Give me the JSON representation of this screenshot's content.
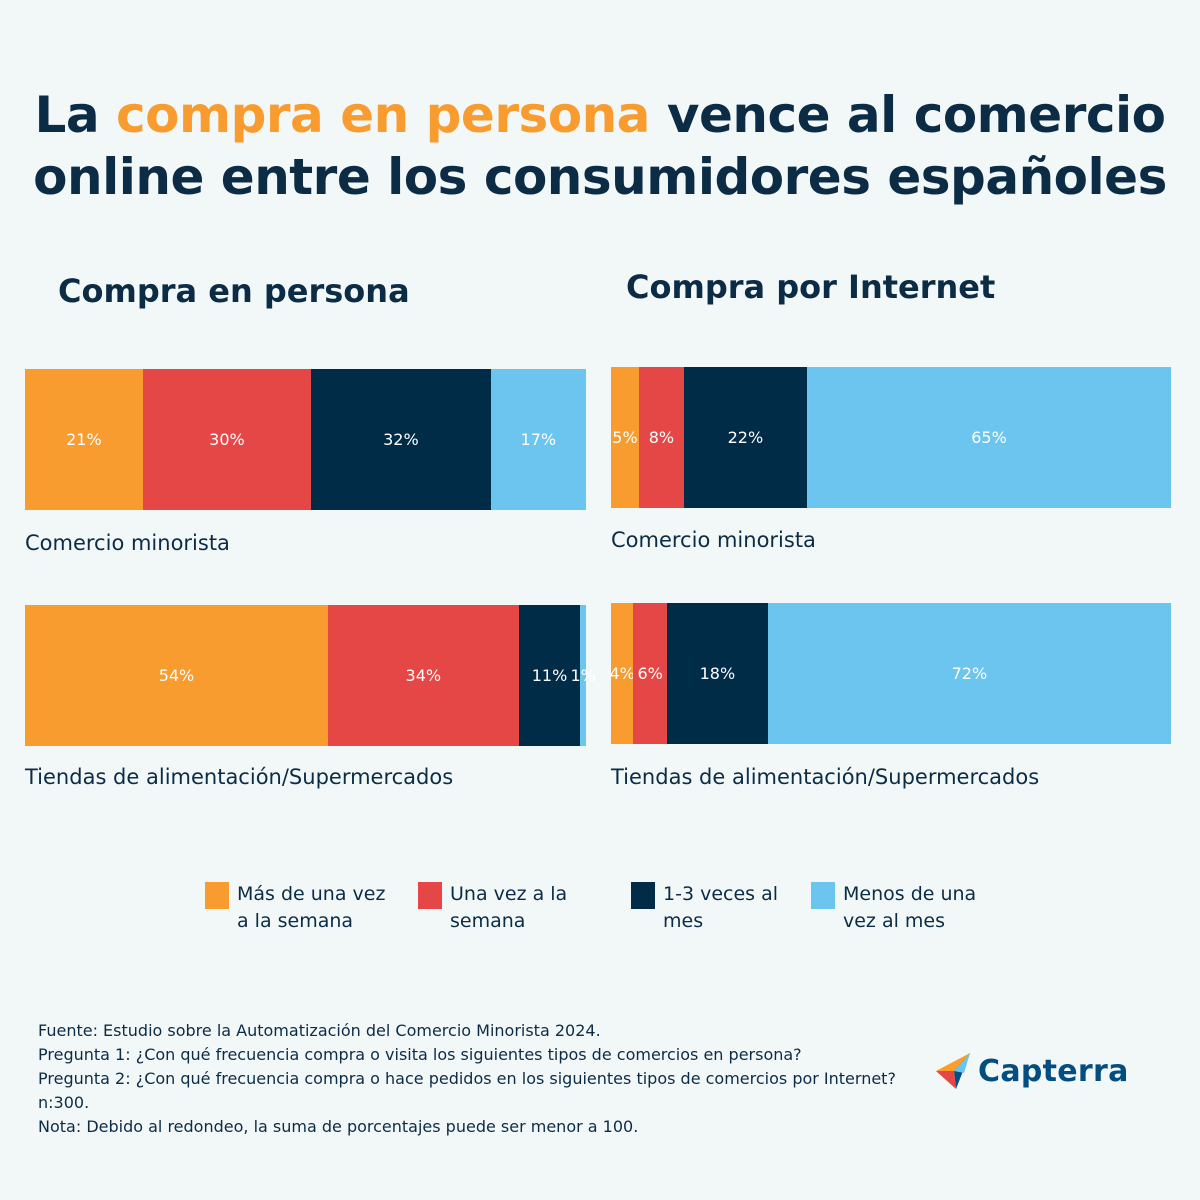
{
  "title": {
    "part1": "La ",
    "highlight": "compra en persona",
    "part2": " vence al comercio",
    "line2": "online entre los consumidores españoles"
  },
  "sections": [
    {
      "title": "Compra en persona"
    },
    {
      "title": "Compra por Internet"
    }
  ],
  "legend": [
    {
      "label": "Más de una vez a la semana",
      "color": "#f89c30"
    },
    {
      "label": "Una vez a la semana",
      "color": "#e54747"
    },
    {
      "label": "1-3 veces al mes",
      "color": "#002c47"
    },
    {
      "label": "Menos de una vez al mes",
      "color": "#6bc5ee"
    }
  ],
  "chart_data": [
    {
      "type": "bar",
      "stacked": true,
      "orientation": "horizontal",
      "title": "Compra en persona",
      "categories": [
        "Comercio minorista",
        "Tiendas de alimentación/Supermercados"
      ],
      "series": [
        {
          "name": "Más de una vez a la semana",
          "color": "#f89c30",
          "values": [
            21,
            54
          ],
          "labels": [
            "21%",
            "54%"
          ]
        },
        {
          "name": "Una vez a la semana",
          "color": "#e54747",
          "values": [
            30,
            34
          ],
          "labels": [
            "30%",
            "34%"
          ]
        },
        {
          "name": "1-3 veces al mes",
          "color": "#002c47",
          "values": [
            32,
            11
          ],
          "labels": [
            "32%",
            "11%"
          ]
        },
        {
          "name": "Menos de una vez al mes",
          "color": "#6bc5ee",
          "values": [
            17,
            1
          ],
          "labels": [
            "17%",
            "1%"
          ]
        }
      ]
    },
    {
      "type": "bar",
      "stacked": true,
      "orientation": "horizontal",
      "title": "Compra por Internet",
      "categories": [
        "Comercio minorista",
        "Tiendas de alimentación/Supermercados"
      ],
      "series": [
        {
          "name": "Más de una vez a la semana",
          "color": "#f89c30",
          "values": [
            5,
            4
          ],
          "labels": [
            "5%",
            "4%"
          ]
        },
        {
          "name": "Una vez a la semana",
          "color": "#e54747",
          "values": [
            8,
            6
          ],
          "labels": [
            "8%",
            "6%"
          ]
        },
        {
          "name": "1-3 veces al mes",
          "color": "#002c47",
          "values": [
            22,
            18
          ],
          "labels": [
            "22%",
            "18%"
          ]
        },
        {
          "name": "Menos de una vez al mes",
          "color": "#6bc5ee",
          "values": [
            65,
            72
          ],
          "labels": [
            "65%",
            "72%"
          ]
        }
      ]
    }
  ],
  "footer": {
    "lines": [
      "Fuente: Estudio sobre la Automatización del Comercio Minorista 2024.",
      "Pregunta 1: ¿Con qué frecuencia compra o visita los siguientes tipos de comercios en persona?",
      "Pregunta 2: ¿Con qué frecuencia compra o hace pedidos en los siguientes tipos de comercios por Internet?",
      "n:300.",
      "Nota: Debido al redondeo, la suma de porcentajes puede ser menor a 100."
    ]
  },
  "logo": {
    "text": "Capterra"
  }
}
